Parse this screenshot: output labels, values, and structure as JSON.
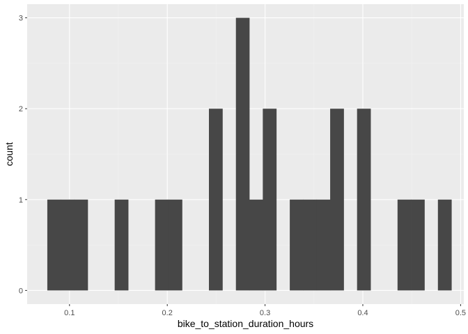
{
  "chart_data": {
    "type": "bar",
    "subtype": "histogram",
    "title": "",
    "xlabel": "bike_to_station_duration_hours",
    "ylabel": "count",
    "xlim": [
      0.0567,
      0.5033
    ],
    "ylim": [
      -0.15,
      3.15
    ],
    "x_ticks": [
      0.1,
      0.2,
      0.3,
      0.4,
      0.5
    ],
    "x_tick_labels": [
      "0.1",
      "0.2",
      "0.3",
      "0.4",
      "0.5"
    ],
    "y_ticks": [
      0,
      1,
      2,
      3
    ],
    "y_tick_labels": [
      "0",
      "1",
      "2",
      "3"
    ],
    "grid": true,
    "legend": "none",
    "bin_width": 0.01376,
    "bins": [
      {
        "x_start": 0.0773,
        "x_end": 0.0911,
        "count": 1
      },
      {
        "x_start": 0.0911,
        "x_end": 0.1049,
        "count": 1
      },
      {
        "x_start": 0.1049,
        "x_end": 0.1186,
        "count": 1
      },
      {
        "x_start": 0.1462,
        "x_end": 0.16,
        "count": 1
      },
      {
        "x_start": 0.1875,
        "x_end": 0.2013,
        "count": 1
      },
      {
        "x_start": 0.2013,
        "x_end": 0.2151,
        "count": 1
      },
      {
        "x_start": 0.2426,
        "x_end": 0.2564,
        "count": 2
      },
      {
        "x_start": 0.2702,
        "x_end": 0.2839,
        "count": 3
      },
      {
        "x_start": 0.2839,
        "x_end": 0.2977,
        "count": 1
      },
      {
        "x_start": 0.2977,
        "x_end": 0.3115,
        "count": 2
      },
      {
        "x_start": 0.3253,
        "x_end": 0.339,
        "count": 1
      },
      {
        "x_start": 0.339,
        "x_end": 0.3528,
        "count": 1
      },
      {
        "x_start": 0.3528,
        "x_end": 0.3666,
        "count": 1
      },
      {
        "x_start": 0.3666,
        "x_end": 0.3804,
        "count": 2
      },
      {
        "x_start": 0.3941,
        "x_end": 0.4079,
        "count": 2
      },
      {
        "x_start": 0.4355,
        "x_end": 0.4492,
        "count": 1
      },
      {
        "x_start": 0.4492,
        "x_end": 0.463,
        "count": 1
      },
      {
        "x_start": 0.4768,
        "x_end": 0.4906,
        "count": 1
      }
    ]
  },
  "colors": {
    "panel_background": "#EBEBEB",
    "grid_major": "#FFFFFF",
    "grid_minor": "#F2F2F2",
    "bar_fill": "#474747",
    "tick_label": "#4D4D4D",
    "tick_mark": "#333333",
    "axis_title": "#000000"
  }
}
